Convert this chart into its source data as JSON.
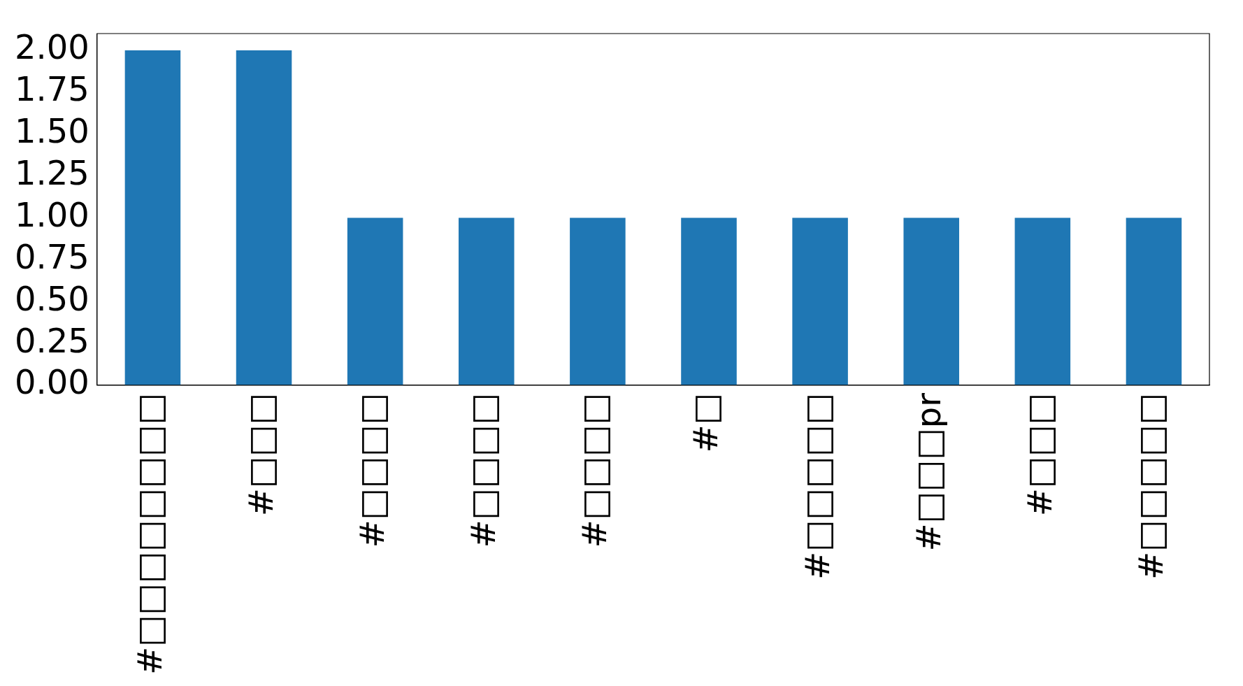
{
  "chart_data": {
    "type": "bar",
    "categories": [
      "#□□□□□□□□",
      "#□□□",
      "#□□□□",
      "#□□□□",
      "#□□□□",
      "#□",
      "#□□□□□",
      "#□□□pr",
      "#□□□",
      "#□□□□□"
    ],
    "values": [
      2,
      2,
      1,
      1,
      1,
      1,
      1,
      1,
      1,
      1
    ],
    "color": "#1f77b4",
    "ylim": [
      0,
      2.1
    ],
    "yticks": [
      {
        "value": 0,
        "label": "0.00"
      },
      {
        "value": 0.25,
        "label": "0.25"
      },
      {
        "value": 0.5,
        "label": "0.50"
      },
      {
        "value": 0.75,
        "label": "0.75"
      },
      {
        "value": 1,
        "label": "1.00"
      },
      {
        "value": 1.25,
        "label": "1.25"
      },
      {
        "value": 1.5,
        "label": "1.50"
      },
      {
        "value": 1.75,
        "label": "1.75"
      },
      {
        "value": 2,
        "label": "2.00"
      }
    ],
    "grid": false,
    "legend": false
  }
}
